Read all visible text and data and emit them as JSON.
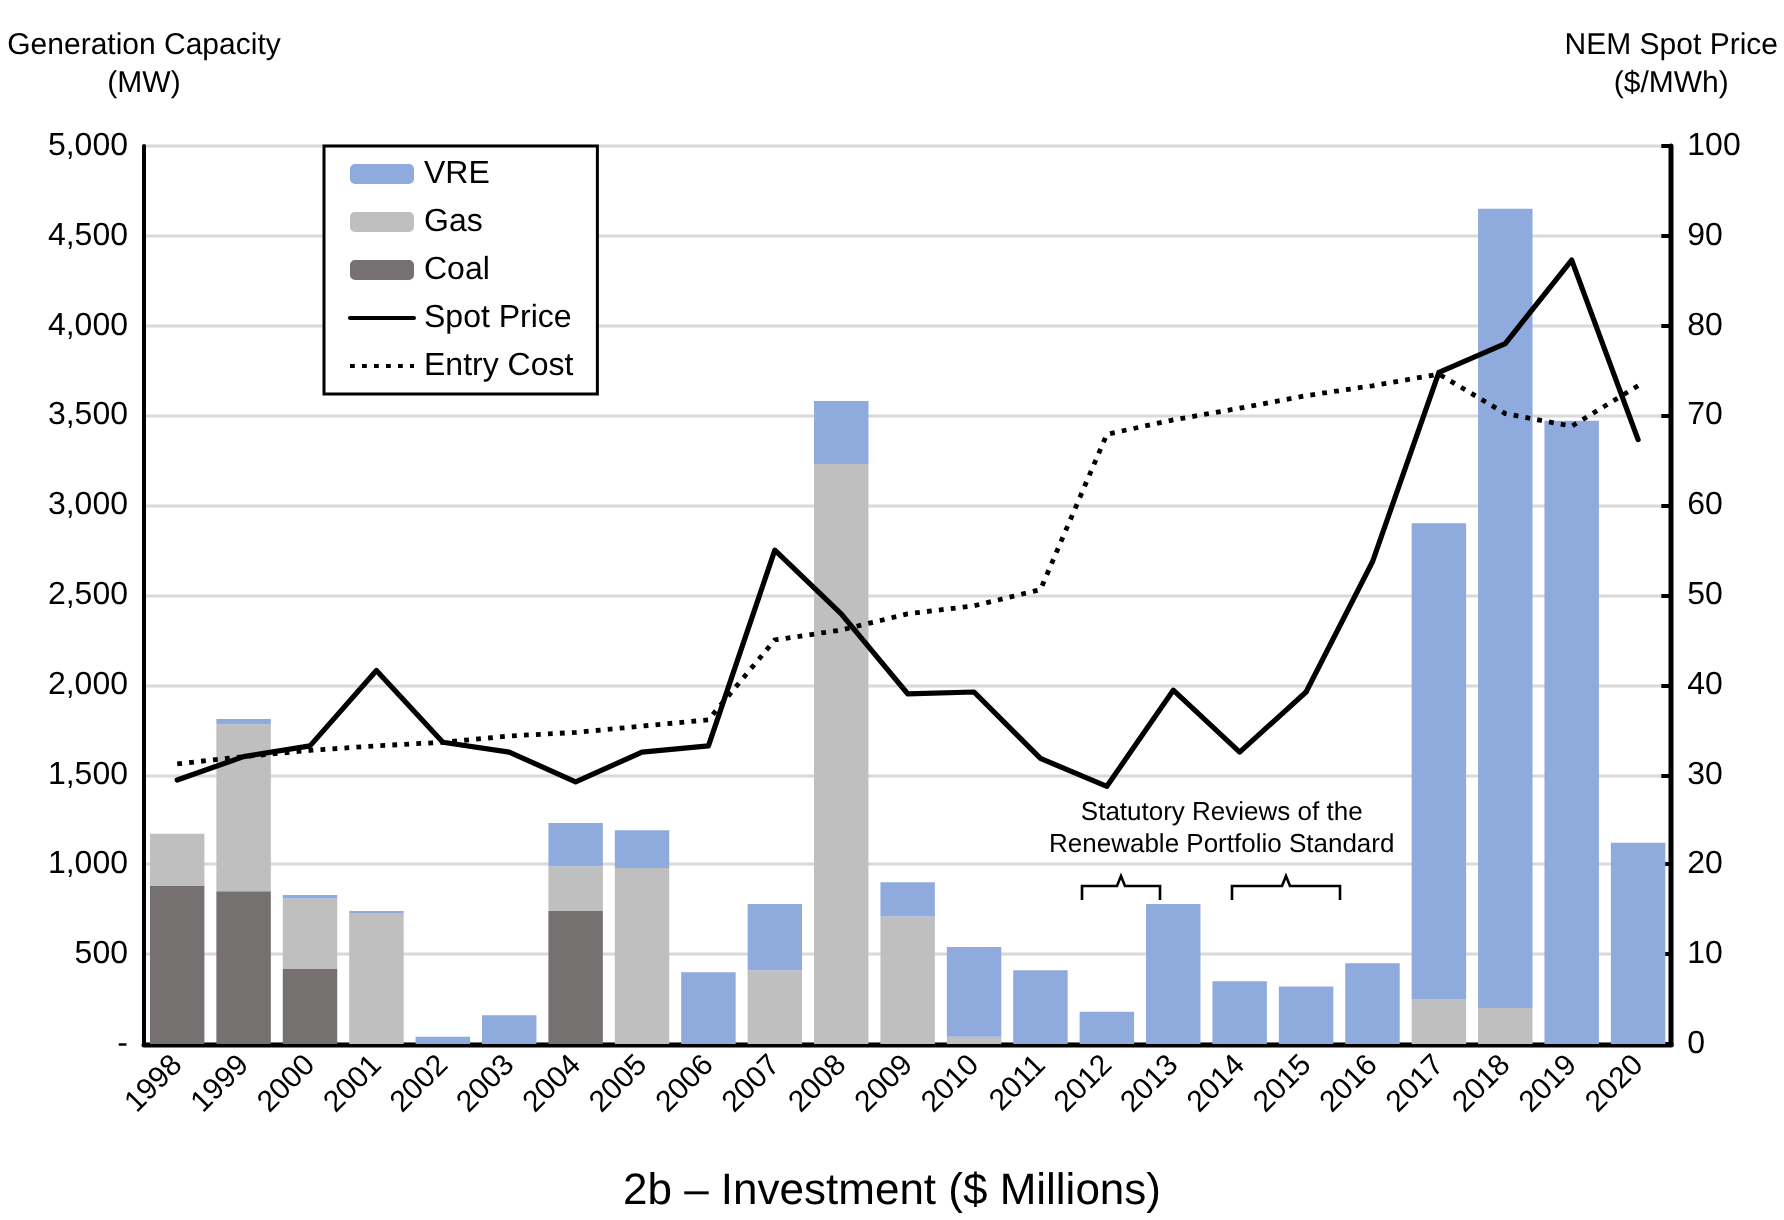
{
  "chart_data": {
    "type": "bar",
    "stacked": true,
    "categories": [
      "1998",
      "1999",
      "2000",
      "2001",
      "2002",
      "2003",
      "2004",
      "2005",
      "2006",
      "2007",
      "2008",
      "2009",
      "2010",
      "2011",
      "2012",
      "2013",
      "2014",
      "2015",
      "2016",
      "2017",
      "2018",
      "2019",
      "2020"
    ],
    "ylabel": "Generation Capacity\n(MW)",
    "y2label": "NEM Spot Price\n($/MWh)",
    "ylim": [
      0,
      5000
    ],
    "yticks": [
      {
        "value": 0,
        "label": "-"
      },
      {
        "value": 500,
        "label": "500"
      },
      {
        "value": 1000,
        "label": "1,000"
      },
      {
        "value": 1500,
        "label": "1,500"
      },
      {
        "value": 2000,
        "label": "2,000"
      },
      {
        "value": 2500,
        "label": "2,500"
      },
      {
        "value": 3000,
        "label": "3,000"
      },
      {
        "value": 3500,
        "label": "3,500"
      },
      {
        "value": 4000,
        "label": "4,000"
      },
      {
        "value": 4500,
        "label": "4,500"
      },
      {
        "value": 5000,
        "label": "5,000"
      }
    ],
    "y2lim": [
      0,
      100
    ],
    "y2ticks": [
      0,
      10,
      20,
      30,
      40,
      50,
      60,
      70,
      80,
      90,
      100
    ],
    "grid": "y",
    "legend": "top left",
    "series": [
      {
        "name": "Coal",
        "color": "#767171",
        "values": [
          880,
          850,
          420,
          0,
          0,
          0,
          740,
          0,
          0,
          0,
          0,
          0,
          0,
          0,
          0,
          0,
          0,
          0,
          0,
          0,
          0,
          0,
          0
        ]
      },
      {
        "name": "Gas",
        "color": "#bfbfbf",
        "values": [
          290,
          930,
          390,
          730,
          0,
          0,
          250,
          980,
          0,
          410,
          3230,
          710,
          40,
          0,
          0,
          0,
          0,
          0,
          0,
          250,
          200,
          0,
          0
        ]
      },
      {
        "name": "VRE",
        "color": "#8faadc",
        "values": [
          0,
          30,
          20,
          10,
          40,
          160,
          240,
          210,
          400,
          370,
          350,
          190,
          500,
          410,
          180,
          780,
          350,
          320,
          450,
          2650,
          4450,
          3470,
          1120
        ]
      },
      {
        "name": "Spot Price",
        "type": "line",
        "axis": "y2",
        "color": "#000000",
        "line_style": "solid",
        "values": [
          29.4,
          32,
          33.2,
          41.6,
          33.6,
          32.5,
          29.2,
          32.5,
          33.2,
          55,
          47.9,
          39,
          39.2,
          31.8,
          28.7,
          39.4,
          32.5,
          39.2,
          53.7,
          74.8,
          78,
          87.3,
          67.3
        ]
      },
      {
        "name": "Entry Cost",
        "type": "line",
        "axis": "y2",
        "color": "#000000",
        "line_style": "dotted",
        "values": [
          31.2,
          32,
          32.7,
          33.2,
          33.6,
          34.3,
          34.7,
          35.4,
          36.1,
          45,
          46.1,
          47.9,
          48.8,
          50.6,
          67.9,
          69.5,
          70.8,
          72.2,
          73.3,
          74.6,
          70.2,
          68.8,
          73.3
        ]
      }
    ],
    "marker": "none",
    "annotations": [
      "Statutory Reviews of the\nRenewable Portfolio Standard",
      "2b – Investment ($ Millions)"
    ]
  }
}
